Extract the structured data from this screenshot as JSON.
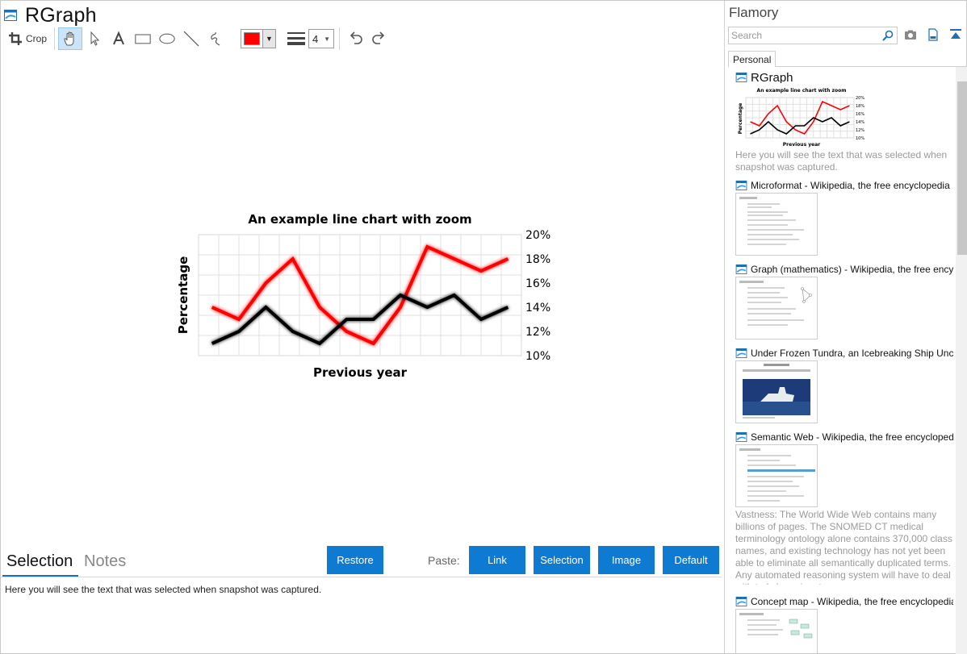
{
  "window": {
    "title": "RGraph"
  },
  "toolbar": {
    "crop_label": "Crop",
    "line_width": "4",
    "color": "#ff0000"
  },
  "chart_data": {
    "type": "line",
    "title": "An example line chart with zoom",
    "xlabel": "Previous year",
    "ylabel": "Percentage",
    "ylim": [
      10,
      20
    ],
    "y_ticks": [
      "20%",
      "18%",
      "16%",
      "14%",
      "12%",
      "10%"
    ],
    "grid": true,
    "series": [
      {
        "color": "#ff0000",
        "values": [
          14,
          13,
          16,
          18,
          14,
          12,
          11,
          14,
          19,
          18,
          17,
          18
        ]
      },
      {
        "color": "#000000",
        "values": [
          11,
          12,
          14,
          12,
          11,
          13,
          13,
          15,
          14,
          15,
          13,
          14
        ]
      }
    ]
  },
  "bottom": {
    "tab_selection": "Selection",
    "tab_notes": "Notes",
    "restore": "Restore",
    "paste_label": "Paste:",
    "link": "Link",
    "selection": "Selection",
    "image": "Image",
    "default": "Default",
    "selected_text": "Here you will see the text that was selected when snapshot was captured."
  },
  "sidebar": {
    "title": "Flamory",
    "search_placeholder": "Search",
    "tab": "Personal",
    "items": [
      {
        "title": "RGraph",
        "desc": "Here you will see the text that was selected when snapshot was captured.",
        "thumb_title": "An example line chart with zoom",
        "thumb_xlabel": "Previous year",
        "thumb_ylabel": "Percentage"
      },
      {
        "title": "Microformat - Wikipedia, the free encyclopedia"
      },
      {
        "title": "Graph (mathematics) - Wikipedia, the free encyc"
      },
      {
        "title": "Under Frozen Tundra, an Icebreaking Ship Unco"
      },
      {
        "title": "Semantic Web - Wikipedia, the free encycloped",
        "desc": "Vastness: The World Wide Web contains many billions of pages. The SNOMED CT medical terminology ontology alone contains 370,000 class names, and existing technology has not yet been able to eliminate all semantically duplicated terms. Any automated reasoning system will have to deal with truly huge inputs."
      },
      {
        "title": "Concept map - Wikipedia, the free encyclopedia"
      }
    ]
  }
}
